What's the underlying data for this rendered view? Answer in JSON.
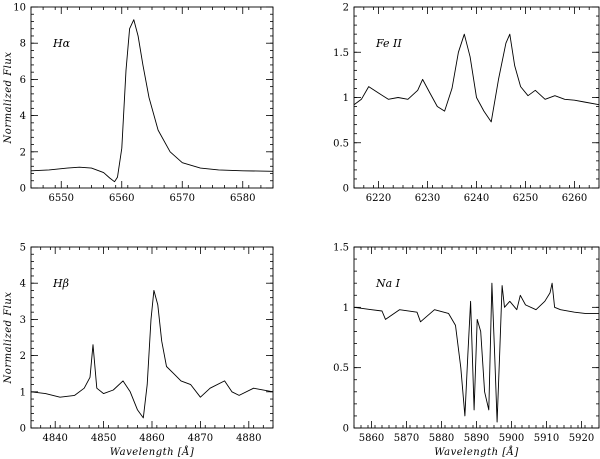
{
  "chart_data": [
    {
      "type": "line",
      "panel": "top-left",
      "label": "Hα",
      "xlabel": "",
      "ylabel": "Normalized Flux",
      "xlim": [
        6545,
        6585
      ],
      "ylim": [
        0,
        10
      ],
      "xticks": [
        6550,
        6560,
        6570,
        6580
      ],
      "yticks": [
        0,
        2,
        4,
        6,
        8,
        10
      ],
      "x": [
        6545,
        6548,
        6551,
        6553,
        6555,
        6557,
        6558,
        6558.8,
        6559.3,
        6560,
        6560.7,
        6561.3,
        6562,
        6562.7,
        6563.5,
        6564.5,
        6566,
        6568,
        6570,
        6573,
        6576,
        6580,
        6585
      ],
      "y": [
        0.95,
        1.0,
        1.1,
        1.15,
        1.1,
        0.85,
        0.55,
        0.35,
        0.6,
        2.2,
        6.5,
        8.8,
        9.3,
        8.4,
        6.8,
        5.0,
        3.2,
        2.0,
        1.4,
        1.1,
        1.0,
        0.95,
        0.92
      ]
    },
    {
      "type": "line",
      "panel": "top-right",
      "label": "Fe II",
      "xlabel": "",
      "ylabel": "",
      "xlim": [
        6215,
        6265
      ],
      "ylim": [
        0,
        2
      ],
      "xticks": [
        6220,
        6230,
        6240,
        6250,
        6260
      ],
      "yticks": [
        0,
        0.5,
        1,
        1.5,
        2
      ],
      "x": [
        6215,
        6216.5,
        6218,
        6220,
        6222,
        6224,
        6226,
        6228,
        6229,
        6230.5,
        6232,
        6233.5,
        6235,
        6236.3,
        6237.5,
        6238.7,
        6240,
        6241.5,
        6243,
        6244.5,
        6246,
        6246.8,
        6247.8,
        6249,
        6250.5,
        6252,
        6254,
        6256,
        6258,
        6260,
        6262,
        6265
      ],
      "y": [
        0.92,
        0.98,
        1.12,
        1.05,
        0.98,
        1.0,
        0.98,
        1.08,
        1.2,
        1.05,
        0.9,
        0.85,
        1.1,
        1.5,
        1.7,
        1.45,
        1.0,
        0.85,
        0.73,
        1.2,
        1.6,
        1.7,
        1.35,
        1.12,
        1.02,
        1.08,
        0.98,
        1.02,
        0.98,
        0.97,
        0.95,
        0.92
      ]
    },
    {
      "type": "line",
      "panel": "bottom-left",
      "label": "Hβ",
      "xlabel": "Wavelength [Å]",
      "ylabel": "Normalized Flux",
      "xlim": [
        4835,
        4885
      ],
      "ylim": [
        0,
        5
      ],
      "xticks": [
        4840,
        4850,
        4860,
        4870,
        4880
      ],
      "yticks": [
        0,
        1,
        2,
        3,
        4,
        5
      ],
      "x": [
        4835,
        4838,
        4841,
        4844,
        4846,
        4847.2,
        4847.8,
        4848.6,
        4850,
        4852,
        4854,
        4855.5,
        4857,
        4858.2,
        4859,
        4859.8,
        4860.4,
        4861.2,
        4862,
        4863,
        4864.5,
        4866,
        4868,
        4870,
        4872,
        4875,
        4876.5,
        4878,
        4881,
        4885
      ],
      "y": [
        1.0,
        0.95,
        0.85,
        0.9,
        1.1,
        1.4,
        2.3,
        1.1,
        0.95,
        1.05,
        1.3,
        1.0,
        0.5,
        0.28,
        1.2,
        3.0,
        3.8,
        3.4,
        2.4,
        1.7,
        1.5,
        1.3,
        1.2,
        0.85,
        1.1,
        1.3,
        1.0,
        0.9,
        1.1,
        1.0
      ]
    },
    {
      "type": "line",
      "panel": "bottom-right",
      "label": "Na I",
      "xlabel": "Wavelength [Å]",
      "ylabel": "",
      "xlim": [
        5855,
        5925
      ],
      "ylim": [
        0,
        1.5
      ],
      "xticks": [
        5860,
        5870,
        5880,
        5890,
        5900,
        5910,
        5920
      ],
      "yticks": [
        0,
        0.5,
        1,
        1.5
      ],
      "x": [
        5855,
        5860,
        5863,
        5864,
        5868,
        5873,
        5874,
        5878,
        5882,
        5884,
        5885.5,
        5886.7,
        5887.5,
        5888.3,
        5889.3,
        5890.2,
        5891.2,
        5892.3,
        5893.5,
        5894.4,
        5895.2,
        5895.9,
        5896.6,
        5897.3,
        5898,
        5899.5,
        5901.5,
        5902.5,
        5904,
        5907,
        5909.5,
        5911,
        5911.6,
        5912.3,
        5914,
        5918,
        5921,
        5925
      ],
      "y": [
        1.0,
        0.98,
        0.97,
        0.9,
        0.98,
        0.96,
        0.88,
        0.98,
        0.95,
        0.85,
        0.5,
        0.1,
        0.6,
        1.05,
        0.15,
        0.9,
        0.8,
        0.3,
        0.15,
        1.2,
        0.6,
        0.05,
        0.6,
        1.18,
        1.0,
        1.05,
        0.98,
        1.1,
        1.02,
        0.98,
        1.05,
        1.12,
        1.2,
        1.0,
        0.98,
        0.96,
        0.95,
        0.95
      ]
    }
  ]
}
